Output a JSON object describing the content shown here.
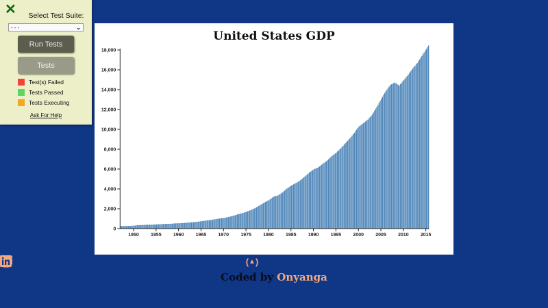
{
  "chart_data": {
    "type": "bar",
    "title": "United States GDP",
    "xlabel": "",
    "ylabel": "",
    "x_tick_labels": [
      "1950",
      "1955",
      "1960",
      "1965",
      "1970",
      "1975",
      "1980",
      "1985",
      "1990",
      "1995",
      "2000",
      "2005",
      "2010",
      "2015"
    ],
    "y_tick_labels": [
      "0",
      "2,000",
      "4,000",
      "6,000",
      "8,000",
      "10,000",
      "12,000",
      "14,000",
      "16,000",
      "18,000"
    ],
    "xlim": [
      1947,
      2015.75
    ],
    "ylim": [
      0,
      18000
    ],
    "bar_color": "#4f86b9",
    "grid": false,
    "annual_values": {
      "years": [
        1947,
        1948,
        1949,
        1950,
        1951,
        1952,
        1953,
        1954,
        1955,
        1956,
        1957,
        1958,
        1959,
        1960,
        1961,
        1962,
        1963,
        1964,
        1965,
        1966,
        1967,
        1968,
        1969,
        1970,
        1971,
        1972,
        1973,
        1974,
        1975,
        1976,
        1977,
        1978,
        1979,
        1980,
        1981,
        1982,
        1983,
        1984,
        1985,
        1986,
        1987,
        1988,
        1989,
        1990,
        1991,
        1992,
        1993,
        1994,
        1995,
        1996,
        1997,
        1998,
        1999,
        2000,
        2001,
        2002,
        2003,
        2004,
        2005,
        2006,
        2007,
        2008,
        2009,
        2010,
        2011,
        2012,
        2013,
        2014,
        2015
      ],
      "values": [
        244,
        270,
        272,
        300,
        347,
        367,
        389,
        391,
        425,
        449,
        474,
        482,
        522,
        543,
        563,
        605,
        638,
        686,
        744,
        815,
        862,
        943,
        1019,
        1075,
        1168,
        1282,
        1429,
        1549,
        1689,
        1878,
        2086,
        2357,
        2632,
        2863,
        3211,
        3345,
        3638,
        4041,
        4347,
        4590,
        4870,
        5253,
        5658,
        5980,
        6174,
        6539,
        6879,
        7309,
        7664,
        8100,
        8609,
        9089,
        9661,
        10285,
        10622,
        10978,
        11511,
        12275,
        13094,
        13856,
        14478,
        14719,
        14419,
        14964,
        15518,
        16155,
        16692,
        17393,
        18100
      ]
    }
  },
  "footer": {
    "icons": [
      "codepen-icon",
      "github-icon",
      "freecodecamp-icon",
      "facebook-icon",
      "instagram-icon",
      "twitter-icon",
      "linkedin-icon"
    ],
    "credit_prefix": "Coded by",
    "credit_name": "Onyanga",
    "accent": "#f4a77f"
  },
  "test_panel": {
    "close": "✕",
    "suite_label": "Select Test Suite:",
    "suite_value": "- - -",
    "run_button": "Run Tests",
    "tests_button": "Tests",
    "legend": [
      {
        "label": "Test(s) Failed",
        "color": "#f44336"
      },
      {
        "label": "Tests Passed",
        "color": "#5fd65f"
      },
      {
        "label": "Tests Executing",
        "color": "#f5a623"
      }
    ],
    "help_link": "Ask For Help"
  }
}
